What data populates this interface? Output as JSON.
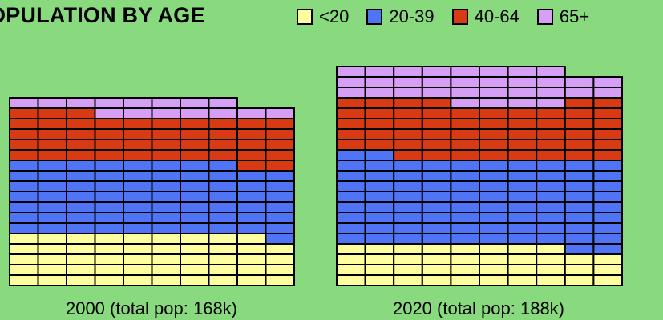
{
  "title": "OPULATION BY AGE",
  "chart_data": [
    {
      "type": "waffle",
      "caption": "2000 (total pop: 168k)",
      "columns": 10,
      "categories": [
        "<20",
        "20-39",
        "40-64",
        "65+"
      ],
      "colors": [
        "#fefe9f",
        "#4f74f6",
        "#d83a14",
        "#d69ff6"
      ],
      "column_counts": [
        [
          5,
          7,
          5,
          1
        ],
        [
          5,
          7,
          5,
          1
        ],
        [
          5,
          7,
          5,
          1
        ],
        [
          5,
          7,
          4,
          2
        ],
        [
          5,
          7,
          4,
          2
        ],
        [
          5,
          7,
          4,
          2
        ],
        [
          5,
          7,
          4,
          2
        ],
        [
          5,
          7,
          4,
          2
        ],
        [
          5,
          6,
          5,
          1
        ],
        [
          4,
          7,
          5,
          1
        ]
      ]
    },
    {
      "type": "waffle",
      "caption": "2020 (total pop: 188k)",
      "columns": 10,
      "categories": [
        "<20",
        "20-39",
        "40-64",
        "65+"
      ],
      "colors": [
        "#fefe9f",
        "#4f74f6",
        "#d83a14",
        "#d69ff6"
      ],
      "column_counts": [
        [
          4,
          9,
          5,
          3
        ],
        [
          4,
          9,
          5,
          3
        ],
        [
          4,
          8,
          6,
          3
        ],
        [
          4,
          8,
          6,
          3
        ],
        [
          4,
          8,
          5,
          4
        ],
        [
          4,
          8,
          5,
          4
        ],
        [
          4,
          8,
          5,
          4
        ],
        [
          4,
          8,
          5,
          4
        ],
        [
          3,
          9,
          6,
          2
        ],
        [
          3,
          9,
          6,
          2
        ]
      ]
    }
  ],
  "legend": [
    {
      "label": "<20",
      "color": "#fefe9f"
    },
    {
      "label": "20-39",
      "color": "#4f74f6"
    },
    {
      "label": "40-64",
      "color": "#d83a14"
    },
    {
      "label": "65+",
      "color": "#d69ff6"
    }
  ]
}
